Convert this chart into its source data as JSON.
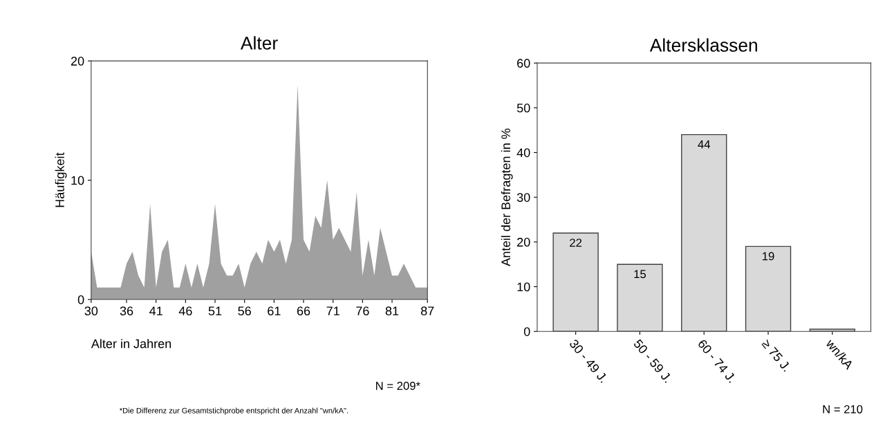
{
  "chart_data": [
    {
      "type": "area",
      "title": "Alter",
      "xlabel": "Alter in Jahren",
      "ylabel": "Häufigkeit",
      "color": "#a0a0a0",
      "x": [
        30,
        31,
        32,
        33,
        34,
        35,
        36,
        37,
        38,
        39,
        40,
        41,
        42,
        43,
        44,
        45,
        46,
        47,
        48,
        49,
        50,
        51,
        52,
        53,
        54,
        55,
        56,
        57,
        58,
        59,
        60,
        61,
        62,
        63,
        64,
        65,
        66,
        67,
        68,
        69,
        70,
        71,
        72,
        73,
        74,
        75,
        76,
        77,
        78,
        79,
        80,
        81,
        82,
        83,
        84,
        85,
        86,
        87
      ],
      "values": [
        4,
        1,
        1,
        1,
        1,
        1,
        3,
        4,
        2,
        1,
        8,
        1,
        4,
        5,
        1,
        1,
        3,
        1,
        3,
        1,
        3,
        8,
        3,
        2,
        2,
        3,
        1,
        3,
        4,
        3,
        5,
        4,
        5,
        3,
        5,
        18,
        5,
        4,
        7,
        6,
        10,
        5,
        6,
        5,
        4,
        9,
        2,
        5,
        2,
        6,
        4,
        2,
        2,
        3,
        2,
        1,
        1,
        1
      ],
      "xlim": [
        30,
        87
      ],
      "xticks": [
        30,
        36,
        41,
        46,
        51,
        56,
        61,
        66,
        71,
        76,
        81,
        87
      ],
      "ylim": [
        0,
        20
      ],
      "yticks": [
        0,
        10,
        20
      ],
      "grid": false,
      "annotations": [
        "N = 209*",
        "*Die Differenz zur Gesamtstichprobe entspricht der Anzahl \"wn/kA\"."
      ]
    },
    {
      "type": "bar",
      "title": "Altersklassen",
      "ylabel": "Anteil der Befragten in %",
      "color": "#d9d9d9",
      "categories": [
        "30 - 49 J.",
        "50 - 59 J.",
        "60 - 74 J.",
        "≥ 75 J.",
        "wn/kA"
      ],
      "values": [
        22,
        15,
        44,
        19,
        0.5
      ],
      "value_labels": [
        "22",
        "15",
        "44",
        "19",
        null
      ],
      "ylim": [
        0,
        60
      ],
      "yticks": [
        0,
        10,
        20,
        30,
        40,
        50,
        60
      ],
      "grid": false,
      "annotations": [
        "N = 210"
      ]
    }
  ]
}
